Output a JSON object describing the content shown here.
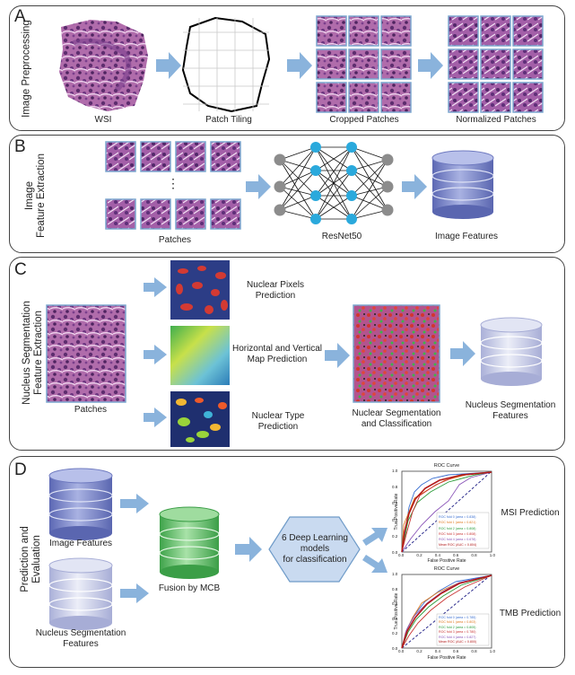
{
  "panels": {
    "a": {
      "letter": "A",
      "side_title": "Image Preprocessing",
      "captions": [
        "WSI",
        "Patch Tiling",
        "Cropped Patches",
        "Normalized Patches"
      ]
    },
    "b": {
      "letter": "B",
      "side_title_line1": "Image",
      "side_title_line2": "Feature Extraction",
      "ellipsis": "⋮",
      "captions": [
        "Patches",
        "ResNet50",
        "Image Features"
      ]
    },
    "c": {
      "letter": "C",
      "side_title_line1": "Nucleus Segmentation",
      "side_title_line2": "Feature Extraction",
      "patches_caption": "Patches",
      "map1_line1": "Nuclear Pixels",
      "map1_line2": "Prediction",
      "map2_line1": "Horizontal and Vertical",
      "map2_line2": "Map Prediction",
      "map3_line1": "Nuclear Type",
      "map3_line2": "Prediction",
      "seg_line1": "Nuclear Segmentation",
      "seg_line2": "and Classification",
      "feat_line1": "Nucleus Segmentation",
      "feat_line2": "Features"
    },
    "d": {
      "letter": "D",
      "side_title_line1": "Prediction and",
      "side_title_line2": "Evaluation",
      "image_features": "Image Features",
      "nseg_line1": "Nucleus Segmentation",
      "nseg_line2": "Features",
      "fusion": "Fusion by MCB",
      "models_line1": "6 Deep Learning",
      "models_line2": "models",
      "models_line3": "for classification",
      "msi": "MSI Prediction",
      "tmb": "TMB Prediction"
    }
  },
  "roc_msi": {
    "title": "ROC Curve",
    "xlabel": "False Positive Rate",
    "ylabel": "True Positive Rate",
    "ticks": [
      "0.0",
      "0.2",
      "0.4",
      "0.6",
      "0.8",
      "1.0"
    ],
    "legend": [
      "ROC fold 0 (area = 0.838)",
      "ROC fold 1 (area = 0.821)",
      "ROC fold 2 (area = 0.808)",
      "ROC fold 3 (area = 0.808)",
      "ROC fold 4 (area = 0.678)",
      "Mean ROC (AUC = 0.804)"
    ]
  },
  "roc_tmb": {
    "title": "ROC Curve",
    "xlabel": "False Positive Rate",
    "ylabel": "True Positive Rate",
    "ticks": [
      "0.0",
      "0.2",
      "0.4",
      "0.6",
      "0.8",
      "1.0"
    ],
    "legend": [
      "ROC fold 0 (area = 0.785)",
      "ROC fold 1 (area = 0.803)",
      "ROC fold 2 (area = 0.805)",
      "ROC fold 3 (area = 0.780)",
      "ROC fold 4 (area = 0.827)",
      "Mean ROC (AUC = 0.800)"
    ]
  },
  "colors": {
    "arrow": "#8ab3dc",
    "he_tissue": "#9c4f9a",
    "patch_border": "#7ca7cf",
    "node_blue": "#2aa9dc",
    "node_gray": "#8c8c8c",
    "db_blue": "#7a86c8",
    "db_light": "#c3c8e4",
    "db_green": "#5cbf66",
    "hexagon": "#c9daf0"
  }
}
